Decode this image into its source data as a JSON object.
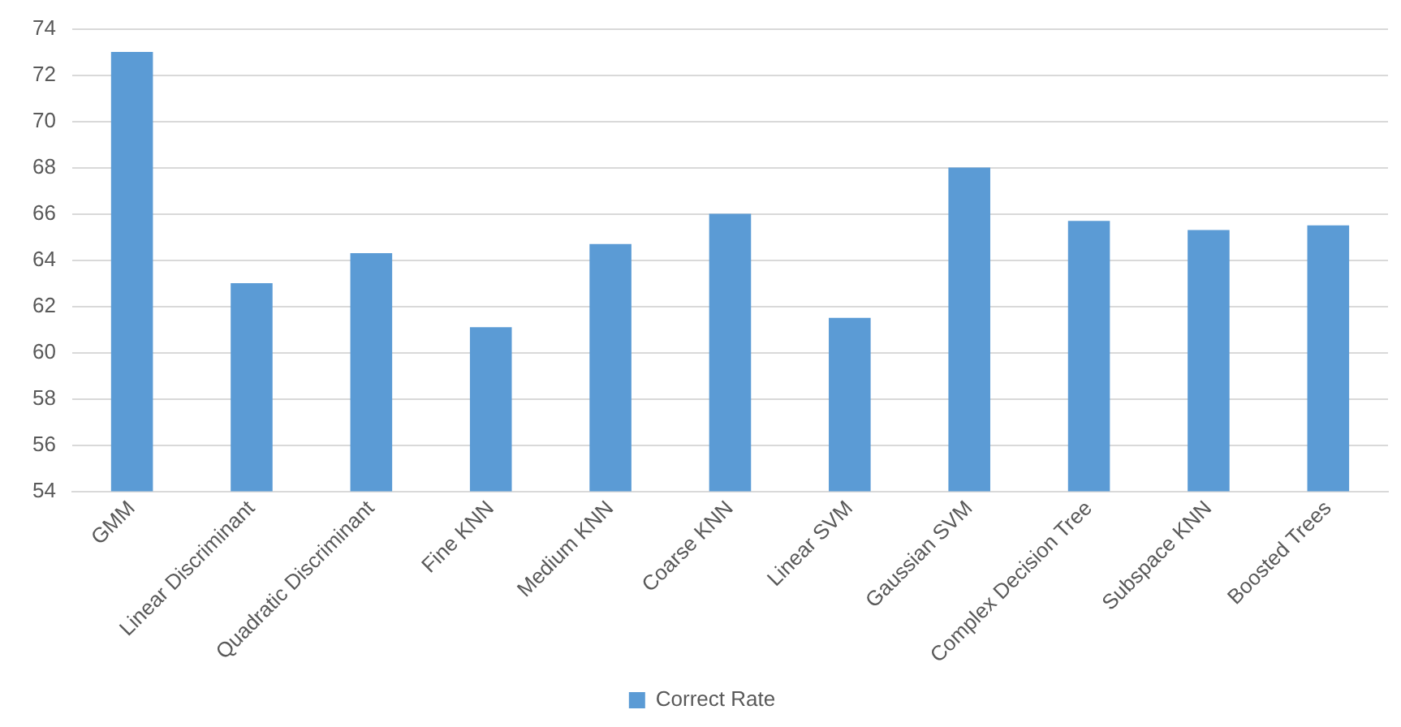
{
  "chart_data": {
    "type": "bar",
    "categories": [
      "GMM",
      "Linear Discriminant",
      "Quadratic Discriminant",
      "Fine KNN",
      "Medium KNN",
      "Coarse KNN",
      "Linear SVM",
      "Gaussian SVM",
      "Complex Decision Tree",
      "Subspace KNN",
      "Boosted Trees"
    ],
    "series": [
      {
        "name": "Correct Rate",
        "color": "#5b9bd5",
        "values": [
          73,
          63,
          64.3,
          61.1,
          64.7,
          66,
          61.5,
          68,
          65.7,
          65.3,
          65.5
        ]
      }
    ],
    "ylim": [
      54,
      74
    ],
    "yticks": [
      54,
      56,
      58,
      60,
      62,
      64,
      66,
      68,
      70,
      72,
      74
    ],
    "grid": "y",
    "legend": "bottom"
  }
}
